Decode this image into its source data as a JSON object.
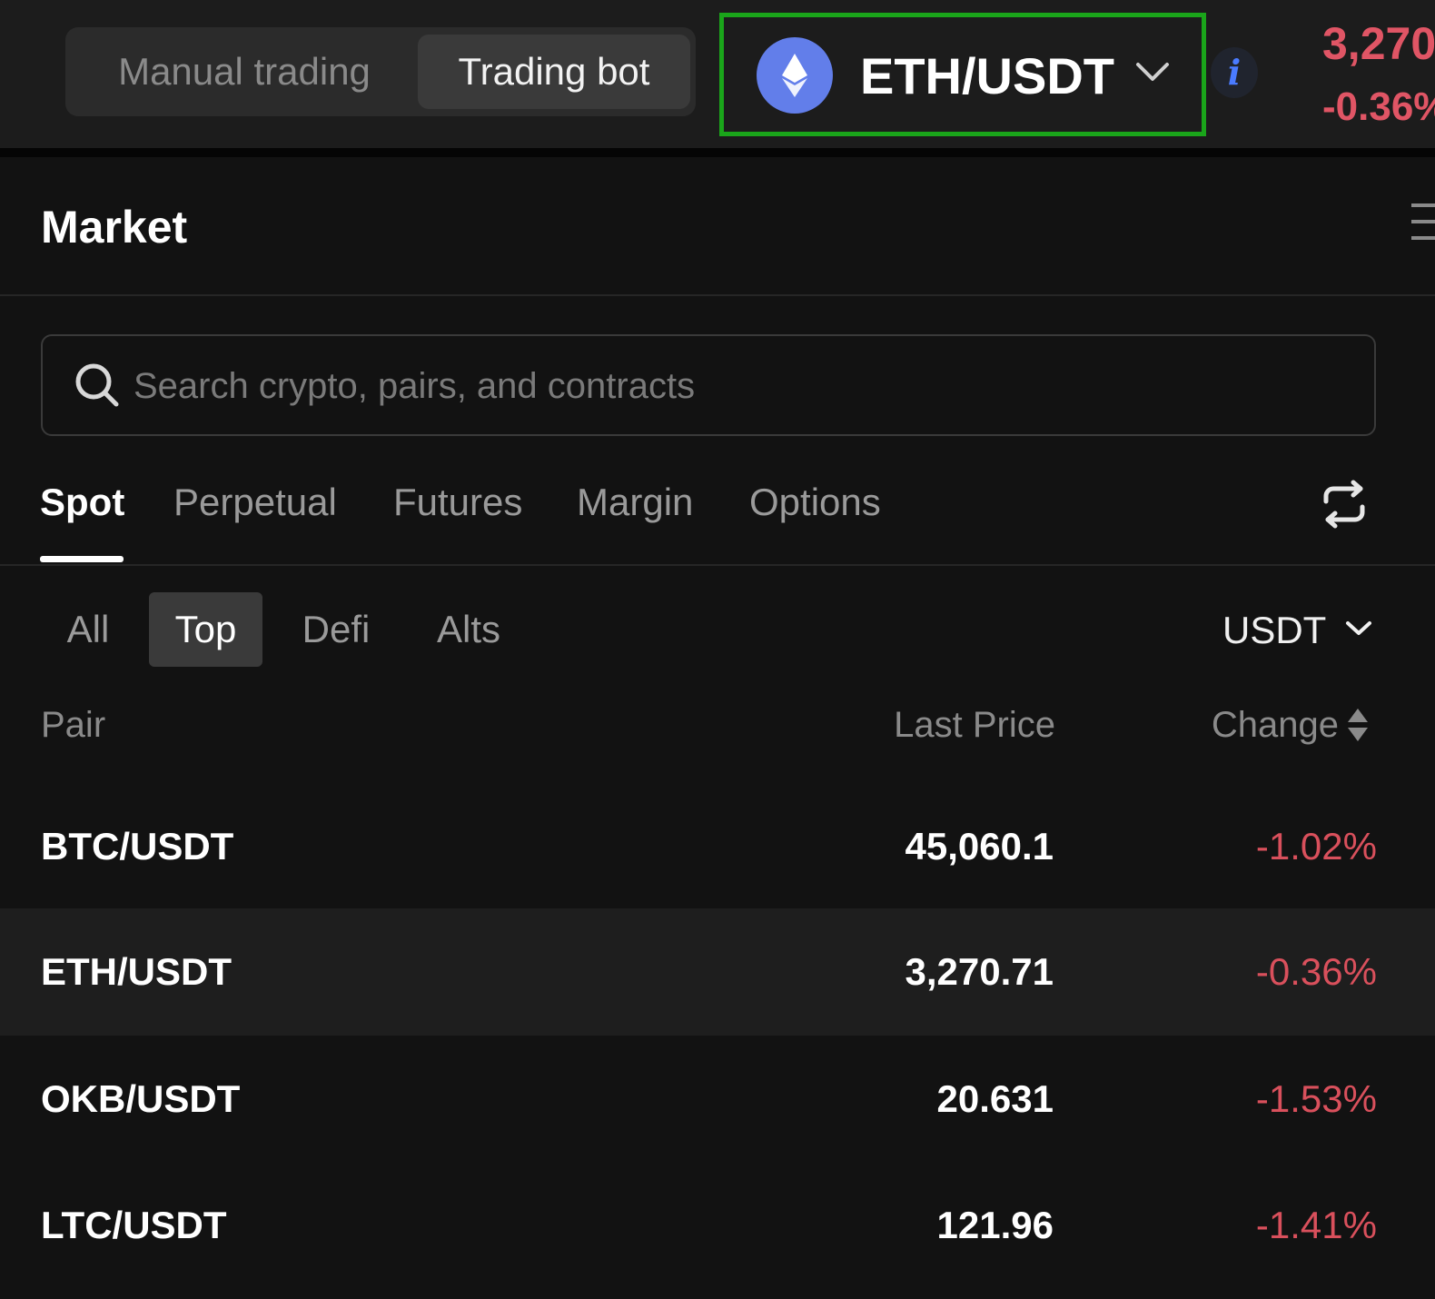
{
  "header": {
    "mode_toggle": {
      "manual_label": "Manual trading",
      "bot_label": "Trading bot",
      "active": "Trading bot"
    },
    "pair_selector": {
      "pair": "ETH/USDT",
      "icon": "ethereum-logo-icon",
      "highlight_color": "#1aa51a"
    },
    "info_icon": "info-icon",
    "ticker": {
      "price": "3,270",
      "change": "-0.36%"
    }
  },
  "market": {
    "title": "Market",
    "search": {
      "placeholder": "Search crypto, pairs, and contracts",
      "value": ""
    },
    "tabs": [
      {
        "label": "Spot",
        "active": true
      },
      {
        "label": "Perpetual",
        "active": false
      },
      {
        "label": "Futures",
        "active": false
      },
      {
        "label": "Margin",
        "active": false
      },
      {
        "label": "Options",
        "active": false
      }
    ],
    "filters": [
      {
        "label": "All",
        "active": false
      },
      {
        "label": "Top",
        "active": true
      },
      {
        "label": "Defi",
        "active": false
      },
      {
        "label": "Alts",
        "active": false
      }
    ],
    "quote_currency": "USDT",
    "columns": {
      "pair": "Pair",
      "last_price": "Last Price",
      "change": "Change"
    },
    "rows": [
      {
        "pair": "BTC/USDT",
        "last_price": "45,060.1",
        "change": "-1.02%"
      },
      {
        "pair": "ETH/USDT",
        "last_price": "3,270.71",
        "change": "-0.36%"
      },
      {
        "pair": "OKB/USDT",
        "last_price": "20.631",
        "change": "-1.53%"
      },
      {
        "pair": "LTC/USDT",
        "last_price": "121.96",
        "change": "-1.41%"
      }
    ]
  },
  "colors": {
    "background": "#121212",
    "negative": "#d9505c",
    "eth_brand": "#627eea",
    "info_accent": "#4a7bff"
  }
}
